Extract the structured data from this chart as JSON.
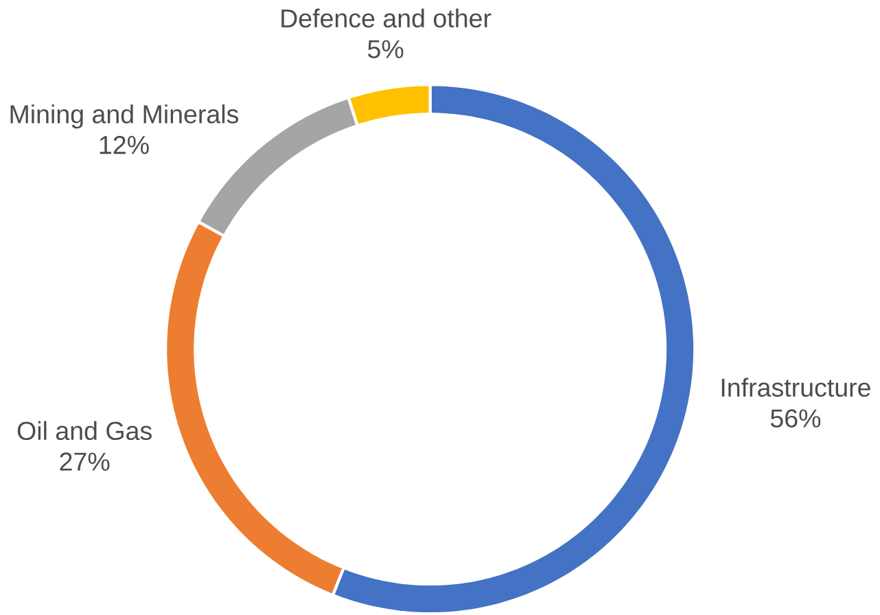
{
  "chart_data": {
    "type": "donut",
    "categories": [
      "Infrastructure",
      "Oil and Gas",
      "Mining and Minerals",
      "Defence and other"
    ],
    "values": [
      56,
      27,
      12,
      5
    ],
    "value_labels": [
      "56%",
      "27%",
      "12%",
      "5%"
    ],
    "colors": [
      "#4472c4",
      "#ed7d31",
      "#a5a5a5",
      "#ffc000"
    ]
  }
}
